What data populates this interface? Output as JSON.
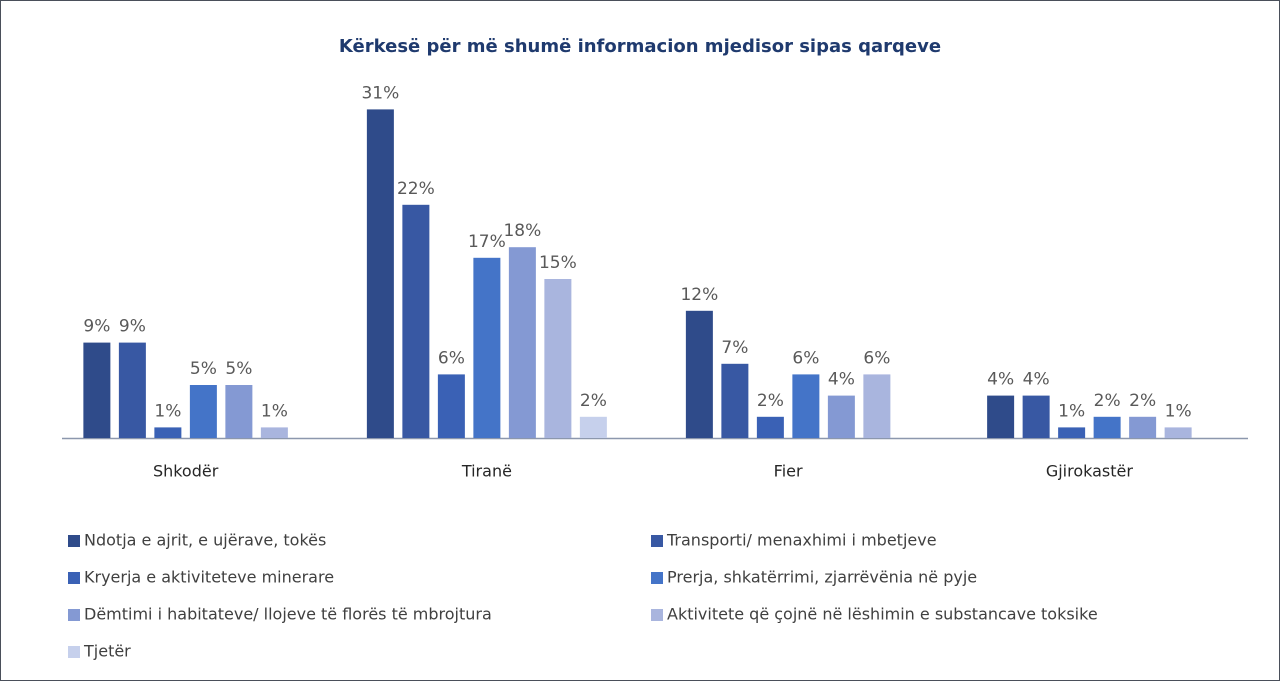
{
  "chart_data": {
    "type": "bar",
    "title": "Kërkesë për më shumë informacion mjedisor sipas qarqeve",
    "categories": [
      "Shkodër",
      "Tiranë",
      "Fier",
      "Gjirokastër"
    ],
    "series": [
      {
        "name": "Ndotja e ajrit, e ujërave, tokës",
        "color": "#2f4b8a",
        "values": [
          9,
          31,
          12,
          4
        ],
        "value_labels": [
          "9%",
          "31%",
          "12%",
          "4%"
        ]
      },
      {
        "name": "Transporti/ menaxhimi i mbetjeve",
        "color": "#3858a3",
        "values": [
          9,
          22,
          7,
          4
        ],
        "value_labels": [
          "9%",
          "22%",
          "7%",
          "4%"
        ]
      },
      {
        "name": "Kryerja e aktiviteteve minerare",
        "color": "#3a61b5",
        "values": [
          1,
          6,
          2,
          1
        ],
        "value_labels": [
          "1%",
          "6%",
          "2%",
          "1%"
        ]
      },
      {
        "name": "Prerja, shkatërrimi, zjarrëvënia në pyje",
        "color": "#4474c8",
        "values": [
          5,
          17,
          6,
          2
        ],
        "value_labels": [
          "5%",
          "17%",
          "6%",
          "2%"
        ]
      },
      {
        "name": "Dëmtimi i habitateve/ llojeve të florës të mbrojtura",
        "color": "#8499d3",
        "values": [
          5,
          18,
          4,
          2
        ],
        "value_labels": [
          "5%",
          "18%",
          "4%",
          "2%"
        ]
      },
      {
        "name": "Aktivitete që çojnë në lëshimin e substancave toksike",
        "color": "#a9b5de",
        "values": [
          1,
          15,
          6,
          1
        ],
        "value_labels": [
          "1%",
          "15%",
          "6%",
          "1%"
        ]
      },
      {
        "name": "Tjetër",
        "color": "#c6d0ec",
        "values": [
          null,
          2,
          null,
          null
        ],
        "value_labels": [
          null,
          "2%",
          null,
          null
        ]
      }
    ]
  }
}
